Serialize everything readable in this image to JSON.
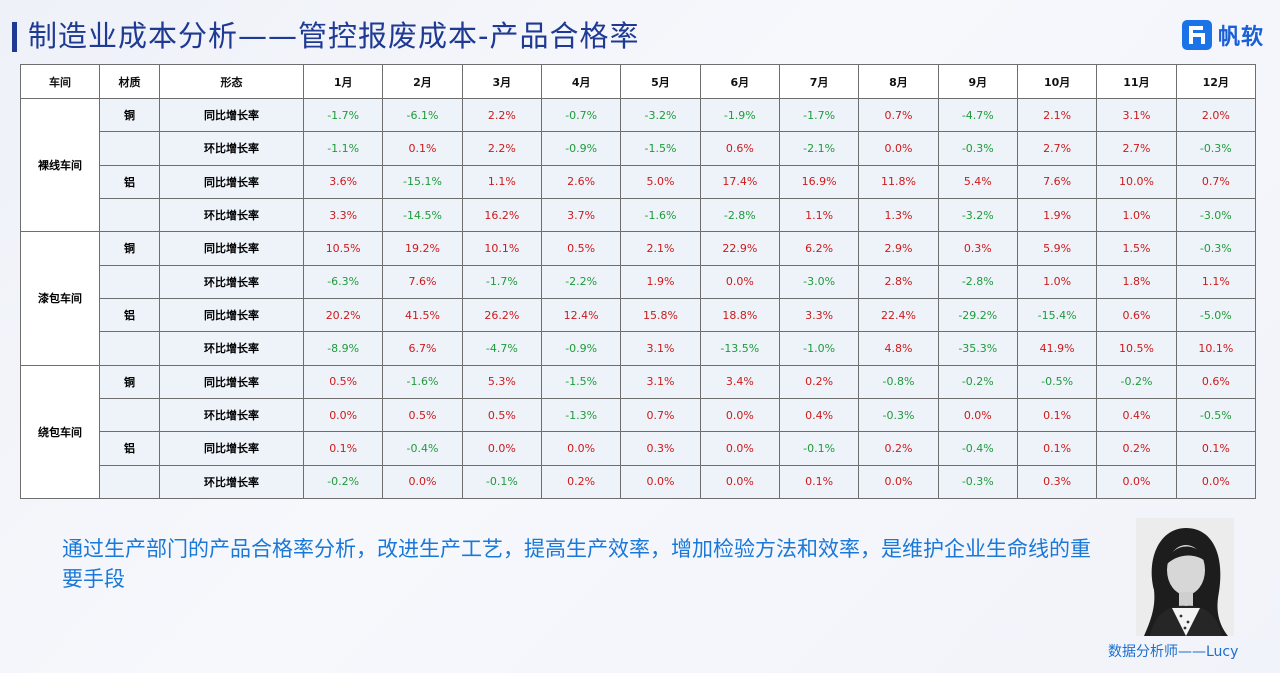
{
  "title": "制造业成本分析——管控报废成本-产品合格率",
  "logo": {
    "text": "帆软",
    "icon": "fanruan-logo-icon",
    "color": "#1b73e8"
  },
  "colors": {
    "title": "#1f3a93",
    "positive": "#cc1b1b",
    "negative": "#1f9b3a",
    "text_accent": "#1a78d8"
  },
  "table": {
    "headers": [
      "车间",
      "材质",
      "形态",
      "1月",
      "2月",
      "3月",
      "4月",
      "5月",
      "6月",
      "7月",
      "8月",
      "9月",
      "10月",
      "11月",
      "12月"
    ],
    "groups": [
      {
        "shop": "裸线车间",
        "rows": [
          {
            "material": "铜",
            "metric": "同比增长率",
            "values": [
              "-1.7%",
              "-6.1%",
              "2.2%",
              "-0.7%",
              "-3.2%",
              "-1.9%",
              "-1.7%",
              "0.7%",
              "-4.7%",
              "2.1%",
              "3.1%",
              "2.0%"
            ]
          },
          {
            "material": "",
            "metric": "环比增长率",
            "values": [
              "-1.1%",
              "0.1%",
              "2.2%",
              "-0.9%",
              "-1.5%",
              "0.6%",
              "-2.1%",
              "0.0%",
              "-0.3%",
              "2.7%",
              "2.7%",
              "-0.3%"
            ]
          },
          {
            "material": "铝",
            "metric": "同比增长率",
            "values": [
              "3.6%",
              "-15.1%",
              "1.1%",
              "2.6%",
              "5.0%",
              "17.4%",
              "16.9%",
              "11.8%",
              "5.4%",
              "7.6%",
              "10.0%",
              "0.7%"
            ]
          },
          {
            "material": "",
            "metric": "环比增长率",
            "values": [
              "3.3%",
              "-14.5%",
              "16.2%",
              "3.7%",
              "-1.6%",
              "-2.8%",
              "1.1%",
              "1.3%",
              "-3.2%",
              "1.9%",
              "1.0%",
              "-3.0%"
            ]
          }
        ]
      },
      {
        "shop": "漆包车间",
        "rows": [
          {
            "material": "铜",
            "metric": "同比增长率",
            "values": [
              "10.5%",
              "19.2%",
              "10.1%",
              "0.5%",
              "2.1%",
              "22.9%",
              "6.2%",
              "2.9%",
              "0.3%",
              "5.9%",
              "1.5%",
              "-0.3%"
            ]
          },
          {
            "material": "",
            "metric": "环比增长率",
            "values": [
              "-6.3%",
              "7.6%",
              "-1.7%",
              "-2.2%",
              "1.9%",
              "0.0%",
              "-3.0%",
              "2.8%",
              "-2.8%",
              "1.0%",
              "1.8%",
              "1.1%"
            ]
          },
          {
            "material": "铝",
            "metric": "同比增长率",
            "values": [
              "20.2%",
              "41.5%",
              "26.2%",
              "12.4%",
              "15.8%",
              "18.8%",
              "3.3%",
              "22.4%",
              "-29.2%",
              "-15.4%",
              "0.6%",
              "-5.0%"
            ]
          },
          {
            "material": "",
            "metric": "环比增长率",
            "values": [
              "-8.9%",
              "6.7%",
              "-4.7%",
              "-0.9%",
              "3.1%",
              "-13.5%",
              "-1.0%",
              "4.8%",
              "-35.3%",
              "41.9%",
              "10.5%",
              "10.1%"
            ]
          }
        ]
      },
      {
        "shop": "绕包车间",
        "rows": [
          {
            "material": "铜",
            "metric": "同比增长率",
            "values": [
              "0.5%",
              "-1.6%",
              "5.3%",
              "-1.5%",
              "3.1%",
              "3.4%",
              "0.2%",
              "-0.8%",
              "-0.2%",
              "-0.5%",
              "-0.2%",
              "0.6%"
            ]
          },
          {
            "material": "",
            "metric": "环比增长率",
            "values": [
              "0.0%",
              "0.5%",
              "0.5%",
              "-1.3%",
              "0.7%",
              "0.0%",
              "0.4%",
              "-0.3%",
              "0.0%",
              "0.1%",
              "0.4%",
              "-0.5%"
            ]
          },
          {
            "material": "铝",
            "metric": "同比增长率",
            "values": [
              "0.1%",
              "-0.4%",
              "0.0%",
              "0.0%",
              "0.3%",
              "0.0%",
              "-0.1%",
              "0.2%",
              "-0.4%",
              "0.1%",
              "0.2%",
              "0.1%"
            ]
          },
          {
            "material": "",
            "metric": "环比增长率",
            "values": [
              "-0.2%",
              "0.0%",
              "-0.1%",
              "0.2%",
              "0.0%",
              "0.0%",
              "0.1%",
              "0.0%",
              "-0.3%",
              "0.3%",
              "0.0%",
              "0.0%"
            ]
          }
        ]
      }
    ]
  },
  "description": "通过生产部门的产品合格率分析，改进生产工艺，提高生产效率，增加检验方法和效率，是维护企业生命线的重要手段",
  "analyst": {
    "caption": "数据分析师——Lucy",
    "photo_icon": "analyst-portrait-icon"
  }
}
